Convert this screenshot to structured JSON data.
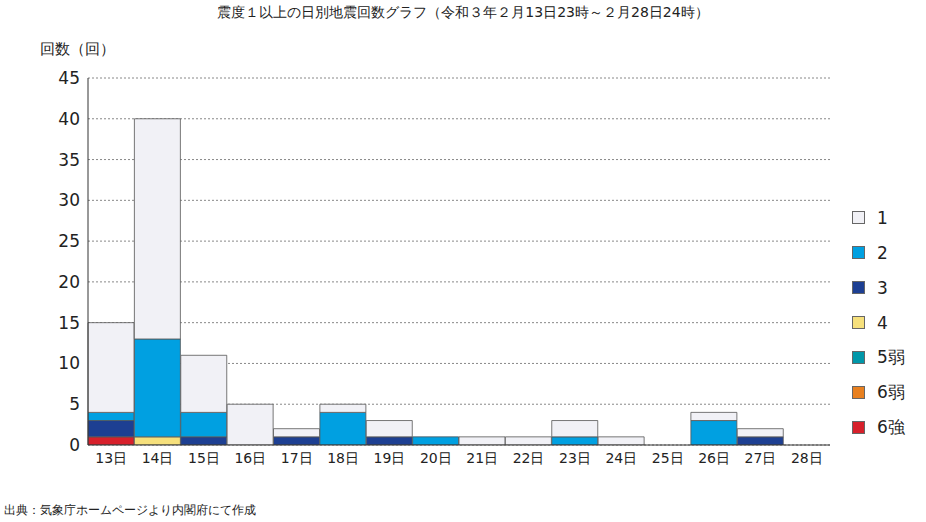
{
  "chart_data": {
    "type": "bar",
    "title": "震度１以上の日別地震回数グラフ（令和３年２月13日23時～２月28日24時）",
    "y_label": "回数（回）",
    "annotation": "出典：気象庁ホームページより内閣府にて作成",
    "categories": [
      "13日",
      "14日",
      "15日",
      "16日",
      "17日",
      "18日",
      "19日",
      "20日",
      "21日",
      "22日",
      "23日",
      "24日",
      "25日",
      "26日",
      "27日",
      "28日"
    ],
    "stacked": true,
    "grid": true,
    "legend": "right",
    "ylim": [
      0,
      45
    ],
    "yticks": [
      0,
      5,
      10,
      15,
      20,
      25,
      30,
      35,
      40,
      45
    ],
    "series": [
      {
        "name": "6強",
        "color": "#d7202b",
        "values": [
          1,
          0,
          0,
          0,
          0,
          0,
          0,
          0,
          0,
          0,
          0,
          0,
          0,
          0,
          0,
          0
        ]
      },
      {
        "name": "6弱",
        "color": "#e8801f",
        "values": [
          0,
          0,
          0,
          0,
          0,
          0,
          0,
          0,
          0,
          0,
          0,
          0,
          0,
          0,
          0,
          0
        ]
      },
      {
        "name": "5弱",
        "color": "#0097a9",
        "values": [
          0,
          0,
          0,
          0,
          0,
          0,
          0,
          0,
          0,
          0,
          0,
          0,
          0,
          0,
          0,
          0
        ]
      },
      {
        "name": "4",
        "color": "#f6e07c",
        "values": [
          0,
          1,
          0,
          0,
          0,
          0,
          0,
          0,
          0,
          0,
          0,
          0,
          0,
          0,
          0,
          0
        ]
      },
      {
        "name": "3",
        "color": "#1d3f92",
        "values": [
          2,
          0,
          1,
          0,
          1,
          0,
          1,
          0,
          0,
          0,
          0,
          0,
          0,
          0,
          1,
          0
        ]
      },
      {
        "name": "2",
        "color": "#00a0e1",
        "values": [
          1,
          12,
          3,
          0,
          0,
          4,
          0,
          1,
          0,
          0,
          1,
          0,
          0,
          3,
          0,
          0
        ]
      },
      {
        "name": "1",
        "color": "#f1f1f6",
        "values": [
          11,
          27,
          7,
          5,
          1,
          1,
          2,
          0,
          1,
          1,
          2,
          1,
          0,
          1,
          1,
          0
        ]
      }
    ]
  }
}
